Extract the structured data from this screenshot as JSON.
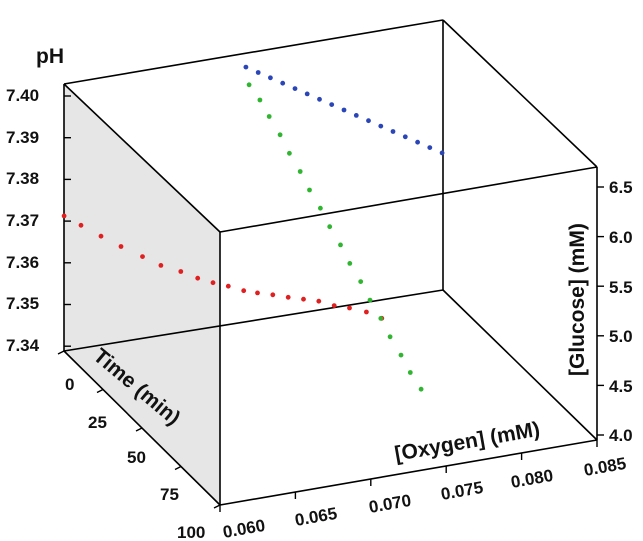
{
  "chart_data": {
    "type": "scatter",
    "title": "",
    "axes": {
      "ph": {
        "label": "pH",
        "ticks": [
          "7.40",
          "7.39",
          "7.38",
          "7.37",
          "7.36",
          "7.35",
          "7.34"
        ],
        "range": [
          7.337,
          7.405
        ]
      },
      "time": {
        "label": "Time (min)",
        "ticks": [
          "0",
          "25",
          "50",
          "75",
          "100"
        ],
        "range": [
          0,
          100
        ]
      },
      "oxygen": {
        "label": "[Oxygen] (mM)",
        "ticks": [
          "0.060",
          "0.065",
          "0.070",
          "0.075",
          "0.080",
          "0.085"
        ],
        "range": [
          0.06,
          0.085
        ]
      },
      "glucose": {
        "label": "[Glucose] (mM)",
        "ticks": [
          "6.5",
          "6.0",
          "5.5",
          "5.0",
          "4.5",
          "4.0"
        ],
        "range": [
          3.95,
          6.55
        ]
      }
    },
    "series": [
      {
        "color": "#e02020",
        "points": [
          {
            "time": 2,
            "ph": 7.388,
            "oxygen": 0.0598,
            "glucose": 4.7
          },
          {
            "time": 8,
            "ph": 7.386,
            "oxygen": 0.0603,
            "glucose": 4.75
          },
          {
            "time": 14,
            "ph": 7.383,
            "oxygen": 0.061,
            "glucose": 4.8
          },
          {
            "time": 20,
            "ph": 7.38,
            "oxygen": 0.0617,
            "glucose": 4.86
          },
          {
            "time": 26,
            "ph": 7.377,
            "oxygen": 0.0625,
            "glucose": 4.92
          },
          {
            "time": 31,
            "ph": 7.374,
            "oxygen": 0.0632,
            "glucose": 4.98
          },
          {
            "time": 36,
            "ph": 7.372,
            "oxygen": 0.064,
            "glucose": 5.05
          },
          {
            "time": 40,
            "ph": 7.369,
            "oxygen": 0.0647,
            "glucose": 5.12
          },
          {
            "time": 44,
            "ph": 7.367,
            "oxygen": 0.0653,
            "glucose": 5.2
          },
          {
            "time": 48,
            "ph": 7.365,
            "oxygen": 0.0659,
            "glucose": 5.3
          },
          {
            "time": 52,
            "ph": 7.362,
            "oxygen": 0.0665,
            "glucose": 5.42
          },
          {
            "time": 56,
            "ph": 7.36,
            "oxygen": 0.067,
            "glucose": 5.55
          },
          {
            "time": 60,
            "ph": 7.358,
            "oxygen": 0.0676,
            "glucose": 5.68
          },
          {
            "time": 64,
            "ph": 7.356,
            "oxygen": 0.0682,
            "glucose": 5.8
          },
          {
            "time": 68,
            "ph": 7.354,
            "oxygen": 0.0688,
            "glucose": 5.93
          },
          {
            "time": 72,
            "ph": 7.352,
            "oxygen": 0.0694,
            "glucose": 6.06
          },
          {
            "time": 76,
            "ph": 7.349,
            "oxygen": 0.07,
            "glucose": 6.18
          },
          {
            "time": 80,
            "ph": 7.347,
            "oxygen": 0.0706,
            "glucose": 6.3
          },
          {
            "time": 85,
            "ph": 7.345,
            "oxygen": 0.0712,
            "glucose": 6.42
          },
          {
            "time": 90,
            "ph": 7.343,
            "oxygen": 0.0717,
            "glucose": 6.5
          }
        ]
      },
      {
        "color": "#2fb52f",
        "points": [
          {
            "time": 3,
            "ph": 7.394,
            "oxygen": 0.0719,
            "glucose": 6.48
          },
          {
            "time": 8,
            "ph": 7.392,
            "oxygen": 0.0721,
            "glucose": 6.4
          },
          {
            "time": 13,
            "ph": 7.39,
            "oxygen": 0.0722,
            "glucose": 6.3
          },
          {
            "time": 18,
            "ph": 7.387,
            "oxygen": 0.0724,
            "glucose": 6.2
          },
          {
            "time": 23,
            "ph": 7.384,
            "oxygen": 0.0725,
            "glucose": 6.1
          },
          {
            "time": 28,
            "ph": 7.381,
            "oxygen": 0.0727,
            "glucose": 6.0
          },
          {
            "time": 33,
            "ph": 7.378,
            "oxygen": 0.0728,
            "glucose": 5.9
          },
          {
            "time": 38,
            "ph": 7.375,
            "oxygen": 0.073,
            "glucose": 5.8
          },
          {
            "time": 43,
            "ph": 7.372,
            "oxygen": 0.0731,
            "glucose": 5.7
          },
          {
            "time": 48,
            "ph": 7.369,
            "oxygen": 0.0733,
            "glucose": 5.6
          },
          {
            "time": 53,
            "ph": 7.366,
            "oxygen": 0.0734,
            "glucose": 5.5
          },
          {
            "time": 58,
            "ph": 7.363,
            "oxygen": 0.0736,
            "glucose": 5.4
          },
          {
            "time": 63,
            "ph": 7.36,
            "oxygen": 0.0737,
            "glucose": 5.3
          },
          {
            "time": 68,
            "ph": 7.357,
            "oxygen": 0.0739,
            "glucose": 5.2
          },
          {
            "time": 73,
            "ph": 7.354,
            "oxygen": 0.074,
            "glucose": 5.1
          },
          {
            "time": 78,
            "ph": 7.351,
            "oxygen": 0.0742,
            "glucose": 5.0
          },
          {
            "time": 83,
            "ph": 7.348,
            "oxygen": 0.0743,
            "glucose": 4.92
          },
          {
            "time": 88,
            "ph": 7.345,
            "oxygen": 0.0745,
            "glucose": 4.85
          }
        ]
      },
      {
        "color": "#2a45b8",
        "points": [
          {
            "time": 0,
            "ph": 7.4,
            "oxygen": 0.072,
            "glucose": 6.5
          },
          {
            "time": 3,
            "ph": 7.399,
            "oxygen": 0.0725,
            "glucose": 6.5
          },
          {
            "time": 6,
            "ph": 7.398,
            "oxygen": 0.073,
            "glucose": 6.5
          },
          {
            "time": 9,
            "ph": 7.397,
            "oxygen": 0.0735,
            "glucose": 6.5
          },
          {
            "time": 12,
            "ph": 7.396,
            "oxygen": 0.074,
            "glucose": 6.5
          },
          {
            "time": 15,
            "ph": 7.395,
            "oxygen": 0.0745,
            "glucose": 6.5
          },
          {
            "time": 18,
            "ph": 7.394,
            "oxygen": 0.075,
            "glucose": 6.5
          },
          {
            "time": 21,
            "ph": 7.393,
            "oxygen": 0.0755,
            "glucose": 6.5
          },
          {
            "time": 24,
            "ph": 7.392,
            "oxygen": 0.076,
            "glucose": 6.5
          },
          {
            "time": 27,
            "ph": 7.391,
            "oxygen": 0.0765,
            "glucose": 6.5
          },
          {
            "time": 30,
            "ph": 7.39,
            "oxygen": 0.077,
            "glucose": 6.5
          },
          {
            "time": 33,
            "ph": 7.389,
            "oxygen": 0.0775,
            "glucose": 6.5
          },
          {
            "time": 36,
            "ph": 7.388,
            "oxygen": 0.078,
            "glucose": 6.5
          },
          {
            "time": 39,
            "ph": 7.387,
            "oxygen": 0.0785,
            "glucose": 6.5
          },
          {
            "time": 42,
            "ph": 7.386,
            "oxygen": 0.079,
            "glucose": 6.5
          },
          {
            "time": 45,
            "ph": 7.385,
            "oxygen": 0.0795,
            "glucose": 6.5
          },
          {
            "time": 48,
            "ph": 7.384,
            "oxygen": 0.08,
            "glucose": 6.5
          }
        ]
      }
    ],
    "grid": false,
    "legend": "none"
  }
}
